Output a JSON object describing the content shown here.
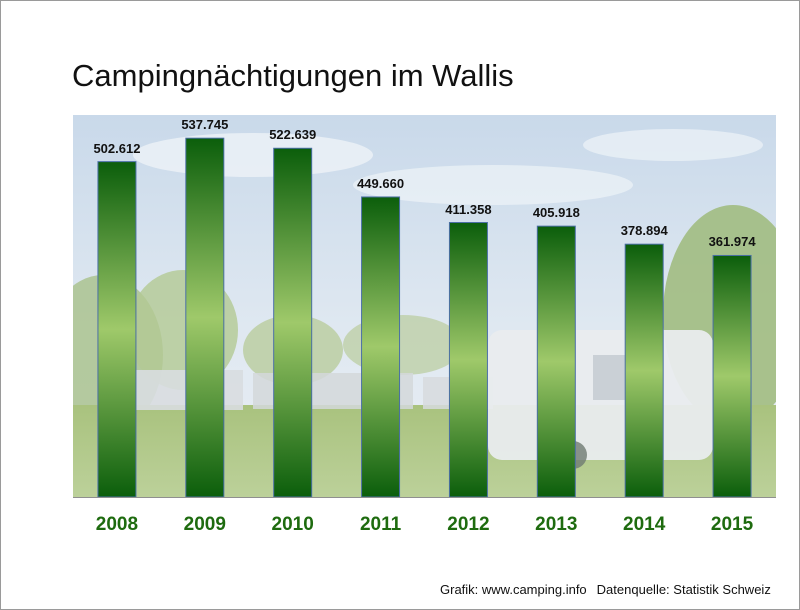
{
  "chart_data": {
    "type": "bar",
    "title": "Campingnächtigungen im Wallis",
    "categories": [
      "2008",
      "2009",
      "2010",
      "2011",
      "2012",
      "2013",
      "2014",
      "2015"
    ],
    "values": [
      502612,
      537745,
      522639,
      449660,
      411358,
      405918,
      378894,
      361974
    ],
    "value_labels": [
      "502.612",
      "537.745",
      "522.639",
      "449.660",
      "411.358",
      "405.918",
      "378.894",
      "361.974"
    ],
    "xlabel": "",
    "ylabel": "",
    "ylim": [
      0,
      565000
    ],
    "grid": false,
    "legend": "none",
    "colors": {
      "bar_dark": "#0b5e0b",
      "bar_light": "#9fc96a",
      "bar_border": "#4a6fa5",
      "year_text": "#1e6b0f"
    }
  },
  "footer": {
    "credit": "Grafik: www.camping.info",
    "source": "Datenquelle: Statistik Schweiz"
  }
}
